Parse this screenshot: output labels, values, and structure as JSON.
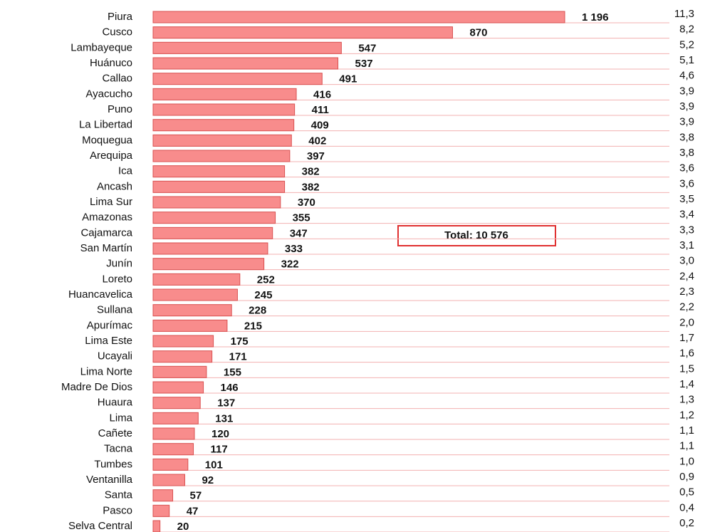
{
  "chart_data": {
    "type": "bar",
    "orientation": "horizontal",
    "color": "#f88c8c",
    "categories": [
      "Piura",
      "Cusco",
      "Lambayeque",
      "Huánuco",
      "Callao",
      "Ayacucho",
      "Puno",
      "La Libertad",
      "Moquegua",
      "Arequipa",
      "Ica",
      "Ancash",
      "Lima Sur",
      "Amazonas",
      "Cajamarca",
      "San Martín",
      "Junín",
      "Loreto",
      "Huancavelica",
      "Sullana",
      "Apurímac",
      "Lima Este",
      "Ucayali",
      "Lima Norte",
      "Madre De Dios",
      "Huaura",
      "Lima",
      "Cañete",
      "Tacna",
      "Tumbes",
      "Ventanilla",
      "Santa",
      "Pasco",
      "Selva Central"
    ],
    "values": [
      1196,
      870,
      547,
      537,
      491,
      416,
      411,
      409,
      402,
      397,
      382,
      382,
      370,
      355,
      347,
      333,
      322,
      252,
      245,
      228,
      215,
      175,
      171,
      155,
      146,
      137,
      131,
      120,
      117,
      101,
      92,
      57,
      47,
      20
    ],
    "value_labels": [
      "1 196",
      "870",
      "547",
      "537",
      "491",
      "416",
      "411",
      "409",
      "402",
      "397",
      "382",
      "382",
      "370",
      "355",
      "347",
      "333",
      "322",
      "252",
      "245",
      "228",
      "215",
      "175",
      "171",
      "155",
      "146",
      "137",
      "131",
      "120",
      "117",
      "101",
      "92",
      "57",
      "47",
      "20"
    ],
    "shares": [
      11.3,
      8.2,
      5.2,
      5.1,
      4.6,
      3.9,
      3.9,
      3.9,
      3.8,
      3.8,
      3.6,
      3.6,
      3.5,
      3.4,
      3.3,
      3.1,
      3.0,
      2.4,
      2.3,
      2.2,
      2.0,
      1.7,
      1.6,
      1.5,
      1.4,
      1.3,
      1.2,
      1.1,
      1.1,
      1.0,
      0.9,
      0.5,
      0.4,
      0.2
    ],
    "share_labels": [
      "11,3",
      "8,2",
      "5,2",
      "5,1",
      "4,6",
      "3,9",
      "3,9",
      "3,9",
      "3,8",
      "3,8",
      "3,6",
      "3,6",
      "3,5",
      "3,4",
      "3,3",
      "3,1",
      "3,0",
      "2,4",
      "2,3",
      "2,2",
      "2,0",
      "1,7",
      "1,6",
      "1,5",
      "1,4",
      "1,3",
      "1,2",
      "1,1",
      "1,1",
      "1,0",
      "0,9",
      "0,5",
      "0,4",
      "0,2"
    ],
    "annotation": "Total: 10 576"
  }
}
